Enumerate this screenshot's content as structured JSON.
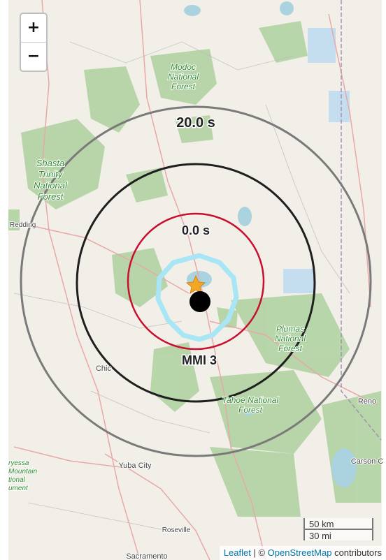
{
  "map": {
    "contour_labels": {
      "outer_time": "20.0 s",
      "inner_time": "0.0 s",
      "intensity": "MMI 3"
    },
    "place_labels": [
      {
        "id": "modoc",
        "lines": [
          "Modoc",
          "National",
          "Forest"
        ]
      },
      {
        "id": "shasta",
        "lines": [
          "Shasta",
          "Trinity",
          "National",
          "Forest"
        ]
      },
      {
        "id": "plumas",
        "lines": [
          "Plumas",
          "National",
          "Forest"
        ]
      },
      {
        "id": "tahoe",
        "lines": [
          "Tahoe National",
          "Forest"
        ]
      },
      {
        "id": "berryessa",
        "lines": [
          "ryessa",
          "Mountain",
          "tional",
          "ument"
        ]
      },
      {
        "id": "redding",
        "lines": [
          "Redding"
        ]
      },
      {
        "id": "chico",
        "lines": [
          "Chic"
        ]
      },
      {
        "id": "yuba",
        "lines": [
          "Yuba City"
        ]
      },
      {
        "id": "roseville",
        "lines": [
          "Roseville"
        ]
      },
      {
        "id": "sacramento",
        "lines": [
          "Sacramento"
        ]
      },
      {
        "id": "reno",
        "lines": [
          "Reno"
        ]
      },
      {
        "id": "carson",
        "lines": [
          "Carson C"
        ]
      }
    ],
    "colors": {
      "outer_ring": "#7a7a7a",
      "mid_ring": "#1f1f1f",
      "red_ring": "#c8102e",
      "mmi_ring": "#a8e6f5",
      "epicenter_star": "#f5a623",
      "station_dot": "#000000",
      "forest_text": "#2e8b2e"
    }
  },
  "zoom": {
    "in_label": "+",
    "out_label": "−"
  },
  "scale": {
    "metric_label": "50 km",
    "imperial_label": "30 mi"
  },
  "attribution": {
    "leaflet": "Leaflet",
    "separator": " | © ",
    "osm": "OpenStreetMap",
    "suffix": " contributors"
  }
}
